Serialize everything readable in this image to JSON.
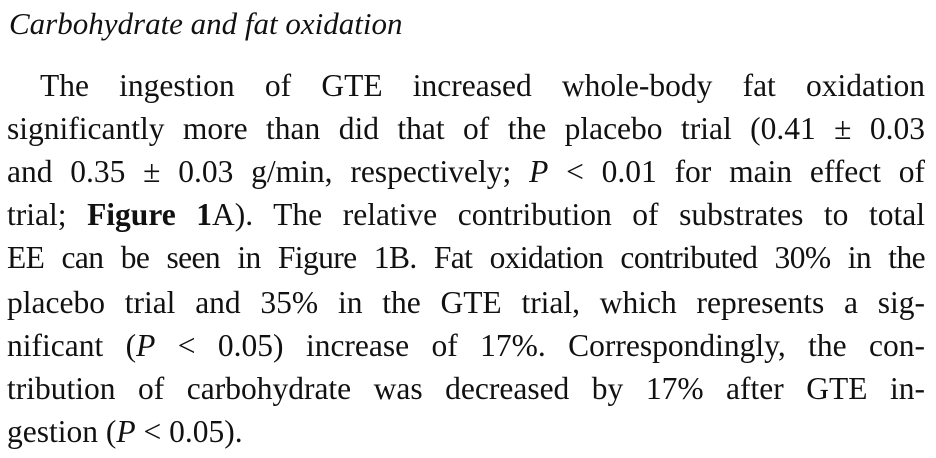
{
  "section": {
    "heading": "Carbohydrate and fat oxidation"
  },
  "paragraph": {
    "l1": "The ingestion of GTE increased whole-body fat oxidation",
    "l2": "significantly more than did that of the placebo trial (0.41 ± 0.03",
    "l3a": "and 0.35 ± 0.03 g/min, respectively; ",
    "l3p": "P",
    "l3b": " < 0.01 for main effect of",
    "l4a": "trial; ",
    "l4fig": "Figure 1",
    "l4b": "A). The relative contribution of substrates to total",
    "l5": "EE can be seen in Figure 1B. Fat oxidation contributed 30% in the",
    "l6": "placebo trial and 35% in the GTE trial, which represents a sig-",
    "l7a": "nificant (",
    "l7p": "P",
    "l7b": " < 0.05) increase of 17%. Correspondingly, the con-",
    "l8": "tribution of carbohydrate was decreased by 17% after GTE in-",
    "l9a": "gestion (",
    "l9p": "P",
    "l9b": " < 0.05)."
  }
}
